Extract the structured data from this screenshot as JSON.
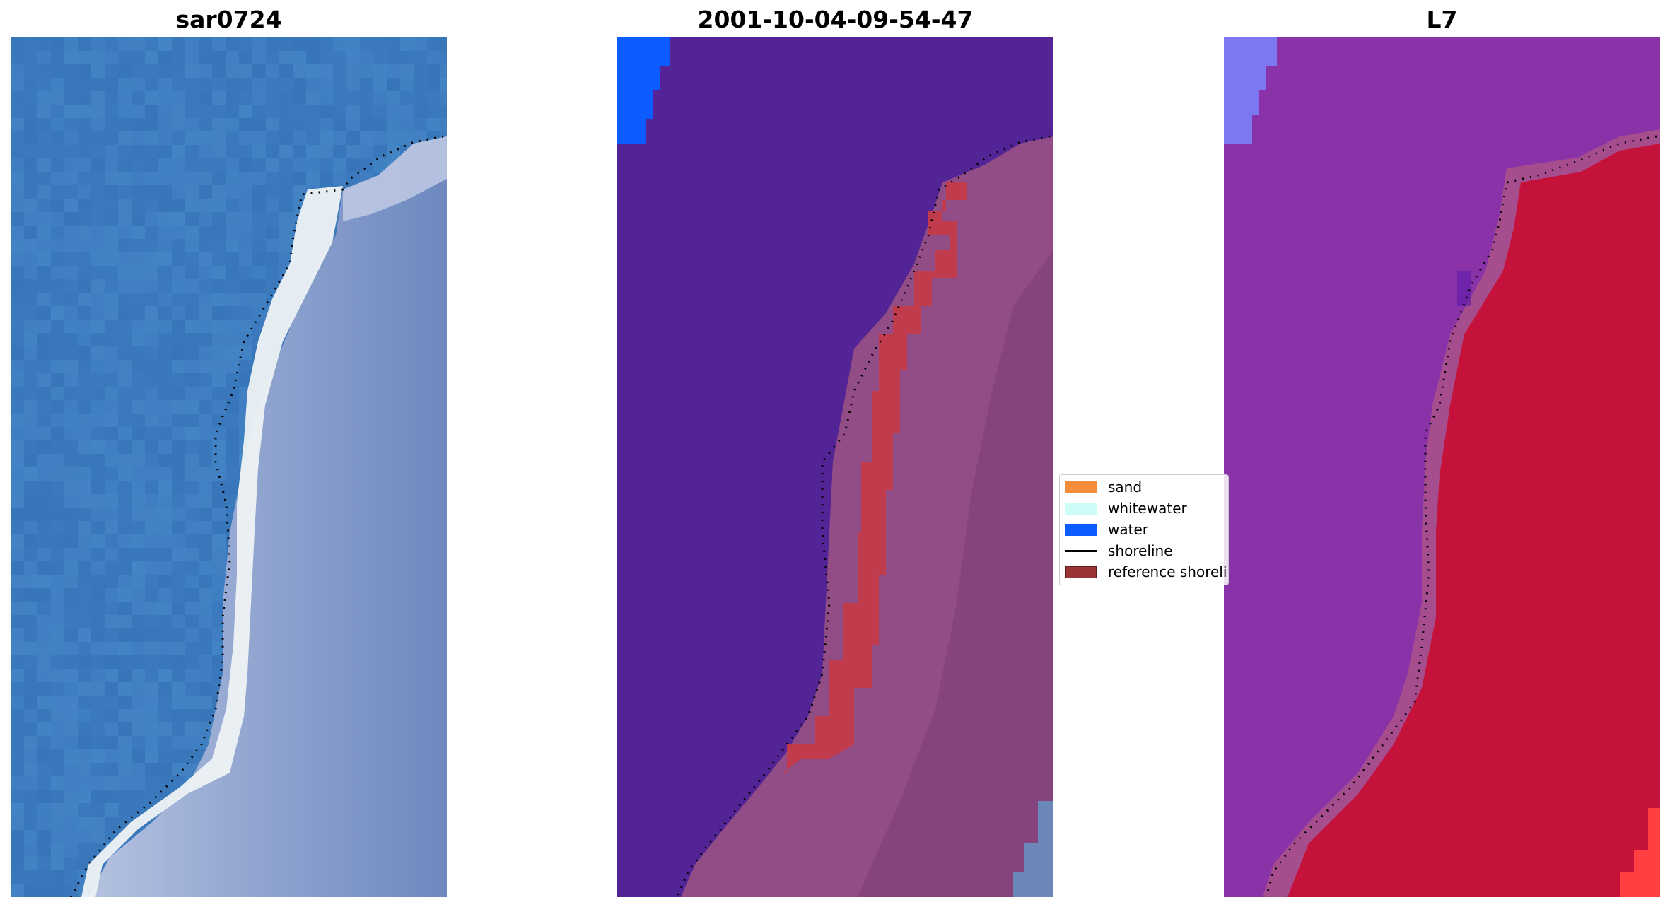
{
  "panels": [
    {
      "title": "sar0724",
      "image": "rgb-satellite-image"
    },
    {
      "title": "2001-10-04-09-54-47",
      "image": "classified-image"
    },
    {
      "title": "L7",
      "image": "index-image"
    }
  ],
  "legend": {
    "items": [
      {
        "label": "sand",
        "color": "#f58d3a",
        "kind": "patch"
      },
      {
        "label": "whitewater",
        "color": "#ccfdf8",
        "kind": "patch"
      },
      {
        "label": "water",
        "color": "#0a5cff",
        "kind": "patch"
      },
      {
        "label": "shoreline",
        "color": "#000000",
        "kind": "line"
      },
      {
        "label": "reference shoreline buffer",
        "color": "#9b3535",
        "kind": "patch"
      }
    ]
  },
  "colors": {
    "ocean_blue": "#3d7cc0",
    "surf_white": "#eef2f4",
    "land_grey_blue": "#7c93c4",
    "class_water_purple": "#532496",
    "class_land_pink": "#924c86",
    "class_buffer_red": "#c03c4c",
    "index_purple": "#8a33a8",
    "index_red": "#c4123a"
  }
}
